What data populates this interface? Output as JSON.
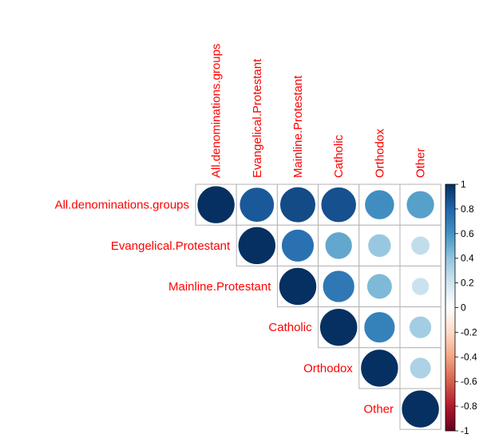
{
  "chart_data": {
    "type": "heatmap",
    "style": "correlation-circle-upper",
    "variables": [
      "All.denominations.groups",
      "Evangelical.Protestant",
      "Mainline.Protestant",
      "Catholic",
      "Orthodox",
      "Other"
    ],
    "matrix": [
      [
        1.0,
        0.85,
        0.9,
        0.88,
        0.62,
        0.55
      ],
      [
        0.85,
        1.0,
        0.75,
        0.52,
        0.38,
        0.25
      ],
      [
        0.9,
        0.75,
        1.0,
        0.72,
        0.45,
        0.22
      ],
      [
        0.88,
        0.52,
        0.72,
        1.0,
        0.68,
        0.35
      ],
      [
        0.62,
        0.38,
        0.45,
        0.68,
        1.0,
        0.32
      ],
      [
        0.55,
        0.25,
        0.22,
        0.35,
        0.32,
        1.0
      ]
    ],
    "triangle": "upper",
    "colorbar": {
      "range": [
        -1,
        1
      ],
      "ticks": [
        "1",
        "0.8",
        "0.6",
        "0.4",
        "0.2",
        "0",
        "-0.2",
        "-0.4",
        "-0.6",
        "-0.8",
        "-1"
      ],
      "colors": [
        "#67001F",
        "#B2182B",
        "#D6604D",
        "#F4A582",
        "#FDDBC7",
        "#FFFFFF",
        "#D1E5F0",
        "#92C5DE",
        "#4393C3",
        "#2166AC",
        "#053061"
      ]
    },
    "label_color": "#ff0000"
  }
}
